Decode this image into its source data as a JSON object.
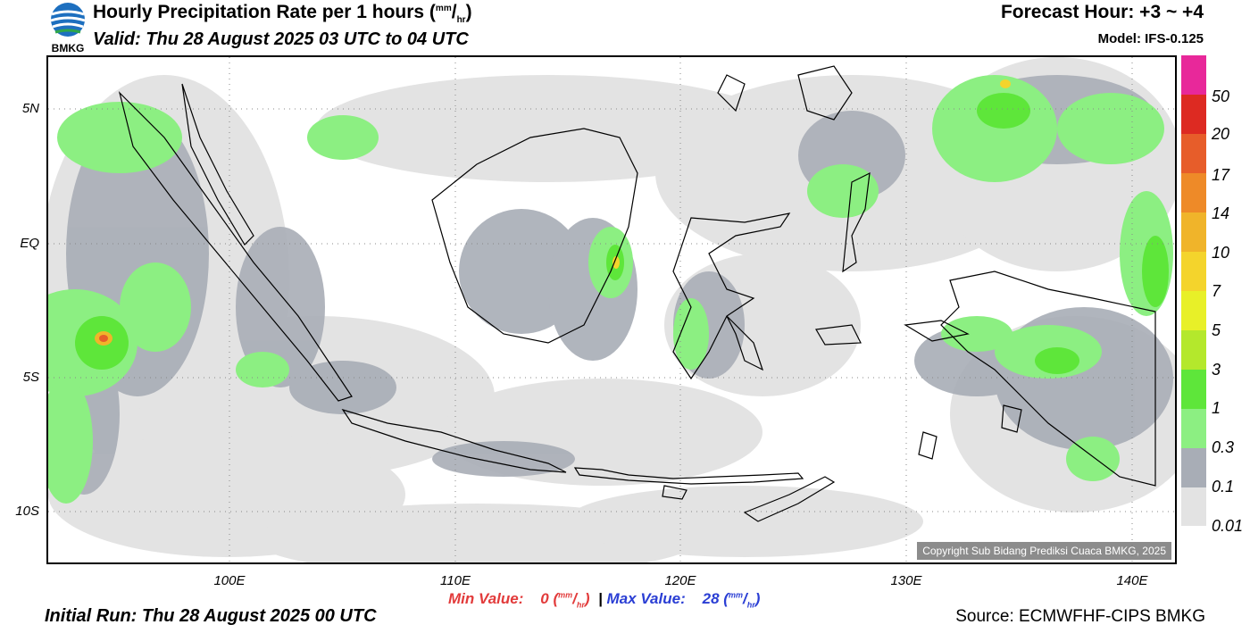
{
  "header": {
    "logo_text": "BMKG",
    "title": "Hourly Precipitation Rate per 1 hours",
    "title_unit_num": "mm",
    "title_unit_den": "hr",
    "valid": "Valid: Thu 28 August 2025 03 UTC to 04 UTC",
    "forecast_hour": "Forecast Hour: +3 ~ +4",
    "model": "Model: IFS-0.125"
  },
  "map": {
    "lat_labels": [
      "5N",
      "EQ",
      "5S",
      "10S"
    ],
    "lon_labels": [
      "100E",
      "110E",
      "120E",
      "130E",
      "140E"
    ],
    "copyright": "Copyright Sub Bidang Prediksi Cuaca BMKG, 2025"
  },
  "legend": {
    "labels": [
      "50",
      "20",
      "17",
      "14",
      "10",
      "7",
      "5",
      "3",
      "1",
      "0.3",
      "0.1",
      "0.01"
    ],
    "colors": [
      "#e8289a",
      "#dd2a22",
      "#e75d2a",
      "#ee8a28",
      "#f0b42a",
      "#f4d42c",
      "#e8f028",
      "#b4e82c",
      "#5ee63a",
      "#8cef82",
      "#a8adb6",
      "#e3e3e3"
    ]
  },
  "stats": {
    "min_label": "Min Value:",
    "min_value": "0",
    "max_label": "Max Value:",
    "max_value": "28",
    "unit_num": "mm",
    "unit_den": "hr",
    "separator": "|"
  },
  "footer": {
    "initial_run": "Initial Run: Thu 28 August 2025 00 UTC",
    "source": "Source: ECMWFHF-CIPS BMKG"
  },
  "colors": {
    "land_outline": "#000000",
    "light_rain": "#8cef82",
    "moderate_rain": "#5ee63a",
    "trace_rain": "#a8adb6",
    "very_light": "#e3e3e3"
  }
}
